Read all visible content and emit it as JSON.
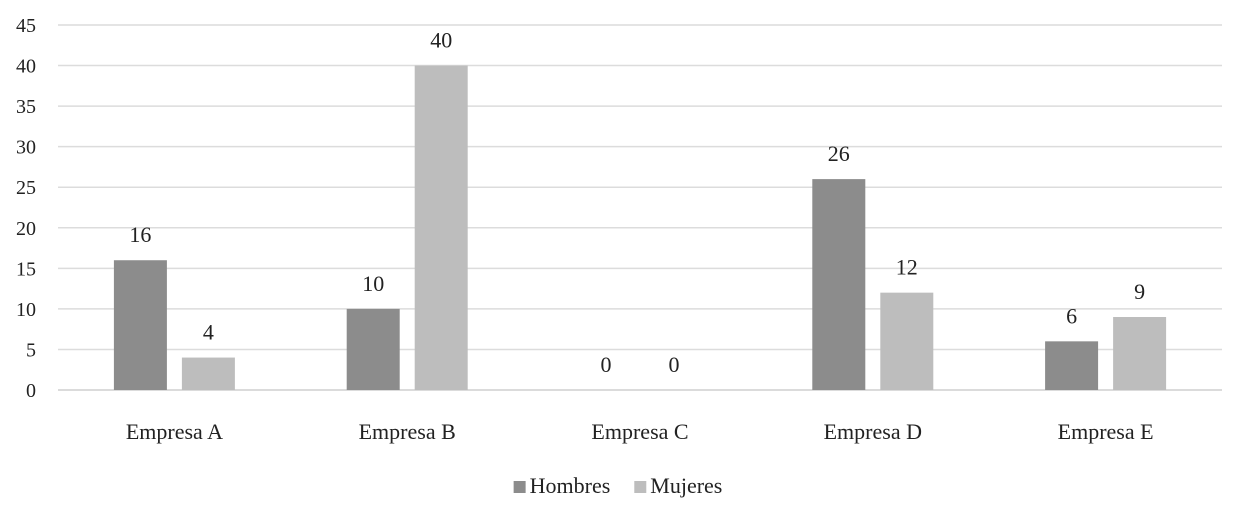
{
  "chart_data": {
    "type": "bar",
    "categories": [
      "Empresa A",
      "Empresa B",
      "Empresa C",
      "Empresa D",
      "Empresa E"
    ],
    "series": [
      {
        "name": "Hombres",
        "values": [
          16,
          10,
          0,
          26,
          6
        ],
        "color": "#8c8c8c"
      },
      {
        "name": "Mujeres",
        "values": [
          4,
          40,
          0,
          12,
          9
        ],
        "color": "#bdbdbd"
      }
    ],
    "title": "",
    "xlabel": "",
    "ylabel": "",
    "ylim": [
      0,
      45
    ],
    "yticks": [
      0,
      5,
      10,
      15,
      20,
      25,
      30,
      35,
      40,
      45
    ],
    "grid": true,
    "data_labels": true,
    "legend_position": "bottom-center"
  }
}
